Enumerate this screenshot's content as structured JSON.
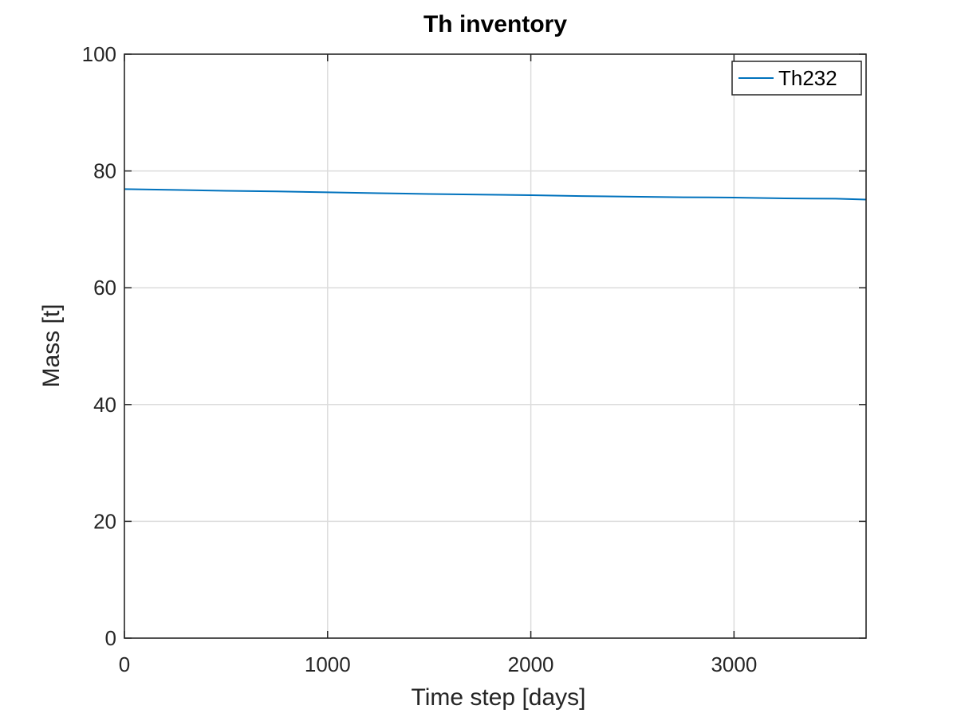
{
  "chart_data": {
    "type": "line",
    "title": "Th inventory",
    "xlabel": "Time step [days]",
    "ylabel": "Mass [t]",
    "xlim": [
      0,
      3650
    ],
    "ylim": [
      0,
      100
    ],
    "xticks": [
      0,
      1000,
      2000,
      3000
    ],
    "yticks": [
      0,
      20,
      40,
      60,
      80,
      100
    ],
    "grid": true,
    "legend_position": "top-right",
    "series": [
      {
        "name": "Th232",
        "color": "#0072BD",
        "x": [
          0,
          250,
          500,
          750,
          1000,
          1250,
          1500,
          1750,
          2000,
          2250,
          2500,
          2750,
          3000,
          3250,
          3500,
          3650
        ],
        "y": [
          76.9,
          76.75,
          76.6,
          76.5,
          76.35,
          76.2,
          76.05,
          75.95,
          75.85,
          75.7,
          75.6,
          75.5,
          75.45,
          75.3,
          75.25,
          75.1
        ]
      }
    ]
  }
}
